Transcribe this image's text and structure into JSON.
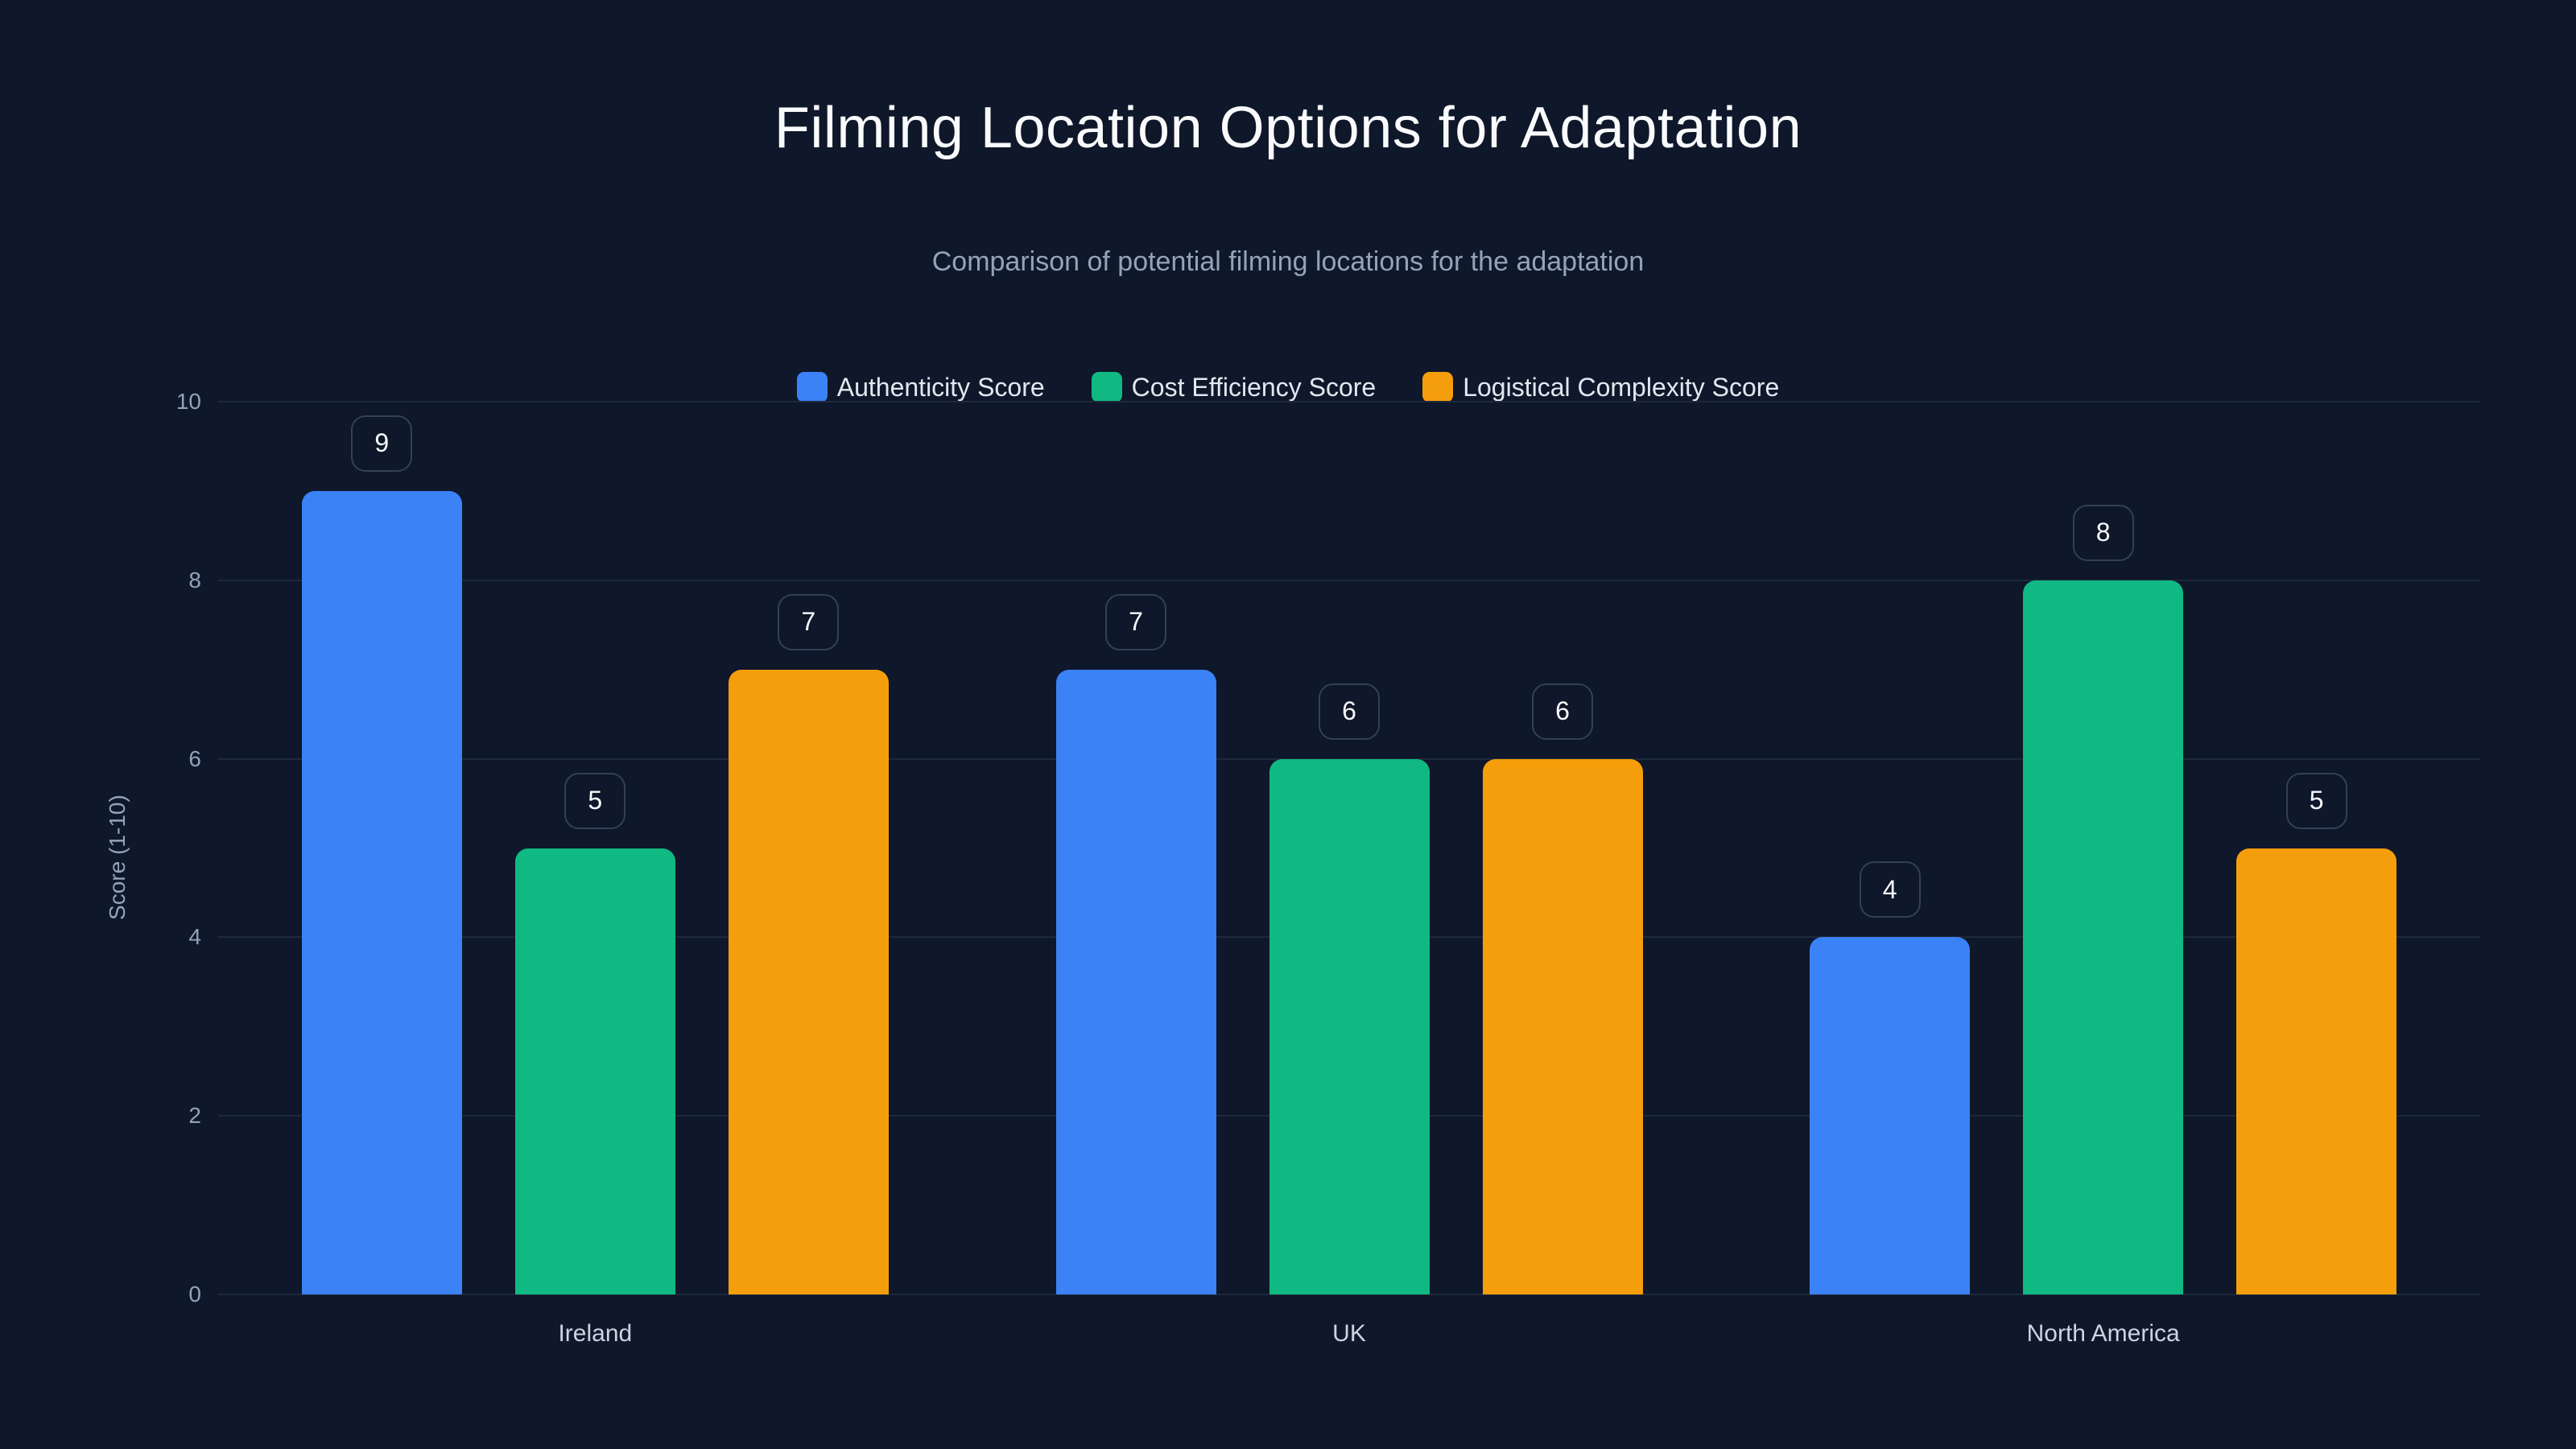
{
  "title": "Filming Location Options for Adaptation",
  "subtitle": "Comparison of potential filming locations for the adaptation",
  "legend": [
    {
      "label": "Authenticity Score",
      "color": "#3b82f6"
    },
    {
      "label": "Cost Efficiency Score",
      "color": "#10b981"
    },
    {
      "label": "Logistical Complexity Score",
      "color": "#f59e0b"
    }
  ],
  "axes": {
    "ylabel": "Score (1-10)",
    "yticks": [
      "0",
      "2",
      "4",
      "6",
      "8",
      "10"
    ]
  },
  "chart_data": {
    "type": "bar",
    "title": "Filming Location Options for Adaptation",
    "subtitle": "Comparison of potential filming locations for the adaptation",
    "categories": [
      "Ireland",
      "UK",
      "North America"
    ],
    "series": [
      {
        "name": "Authenticity Score",
        "color": "#3b82f6",
        "values": [
          9,
          7,
          4
        ]
      },
      {
        "name": "Cost Efficiency Score",
        "color": "#10b981",
        "values": [
          5,
          6,
          8
        ]
      },
      {
        "name": "Logistical Complexity Score",
        "color": "#f59e0b",
        "values": [
          7,
          6,
          5
        ]
      }
    ],
    "xlabel": "",
    "ylabel": "Score (1-10)",
    "ylim": [
      0,
      10
    ],
    "yticks": [
      0,
      2,
      4,
      6,
      8,
      10
    ],
    "grid": true,
    "legend_position": "top",
    "data_labels": true
  }
}
